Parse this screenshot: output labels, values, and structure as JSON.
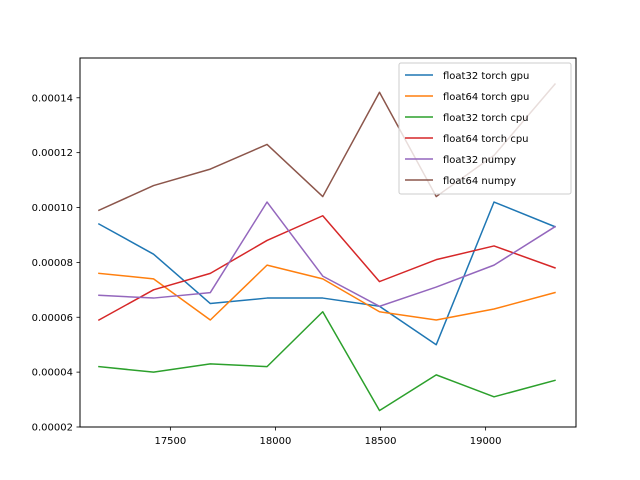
{
  "chart_data": {
    "type": "line",
    "title": "",
    "xlabel": "",
    "ylabel": "",
    "xlim": [
      17070,
      19430
    ],
    "ylim": [
      2e-05,
      0.0001545
    ],
    "x": [
      17160,
      17420,
      17690,
      17960,
      18225,
      18495,
      18765,
      19040,
      19330
    ],
    "xticks": [
      17500,
      18000,
      18500,
      19000
    ],
    "xtick_labels": [
      "17500",
      "18000",
      "18500",
      "19000"
    ],
    "yticks": [
      2e-05,
      4e-05,
      6e-05,
      8e-05,
      0.0001,
      0.00012,
      0.00014
    ],
    "ytick_labels": [
      "0.00002",
      "0.00004",
      "0.00006",
      "0.00008",
      "0.00010",
      "0.00012",
      "0.00014"
    ],
    "grid": false,
    "legend_position": "top-right",
    "series": [
      {
        "name": "float32 torch gpu",
        "color": "#1f77b4",
        "values": [
          9.4e-05,
          8.3e-05,
          6.5e-05,
          6.7e-05,
          6.7e-05,
          6.4e-05,
          5e-05,
          0.000102,
          9.3e-05
        ]
      },
      {
        "name": "float64 torch gpu",
        "color": "#ff7f0e",
        "values": [
          7.6e-05,
          7.4e-05,
          5.9e-05,
          7.9e-05,
          7.4e-05,
          6.2e-05,
          5.9e-05,
          6.3e-05,
          6.9e-05
        ]
      },
      {
        "name": "float32 torch cpu",
        "color": "#2ca02c",
        "values": [
          4.2e-05,
          4e-05,
          4.3e-05,
          4.2e-05,
          6.2e-05,
          2.6e-05,
          3.9e-05,
          3.1e-05,
          3.7e-05
        ]
      },
      {
        "name": "float64 torch cpu",
        "color": "#d62728",
        "values": [
          5.9e-05,
          7e-05,
          7.6e-05,
          8.8e-05,
          9.7e-05,
          7.3e-05,
          8.1e-05,
          8.6e-05,
          7.8e-05
        ]
      },
      {
        "name": "float32 numpy",
        "color": "#9467bd",
        "values": [
          6.8e-05,
          6.7e-05,
          6.9e-05,
          0.000102,
          7.5e-05,
          6.4e-05,
          7.1e-05,
          7.9e-05,
          9.3e-05
        ]
      },
      {
        "name": "float64 numpy",
        "color": "#8c564b",
        "values": [
          9.9e-05,
          0.000108,
          0.000114,
          0.000123,
          0.000104,
          0.000142,
          0.000104,
          0.000119,
          0.000145
        ]
      }
    ]
  }
}
